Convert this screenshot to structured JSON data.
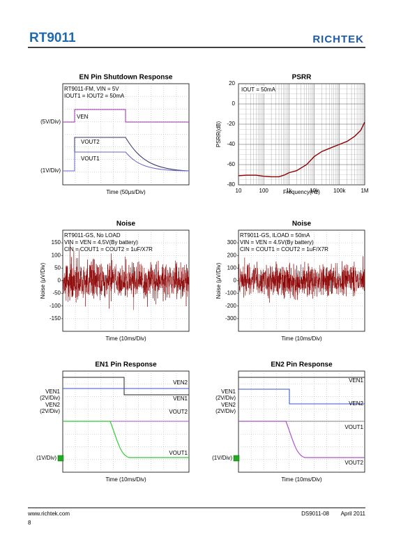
{
  "header": {
    "title": "RT9011",
    "logo": "RICHTEK"
  },
  "panels": [
    {
      "title": "EN Pin Shutdown Response",
      "notes": [
        "RT9011-FM, VIN = 5V",
        "IOUT1 = IOUT2 = 50mA"
      ],
      "left_labels": [
        "(5V/Div)",
        "(1V/Div)"
      ],
      "trace_labels": [
        "VEN",
        "VOUT2",
        "VOUT1"
      ],
      "xlabel": "Time (50μs/Div)"
    },
    {
      "type": "line",
      "title": "PSRR",
      "notes": [
        "IOUT = 50mA"
      ],
      "xlabel": "Frequency(Hz)",
      "ylabel": "PSRR(dB)",
      "xscale": "log",
      "xlim": [
        10,
        1000000
      ],
      "xticks": [
        10,
        100,
        {
          "value": 1000,
          "label": "1k"
        },
        {
          "value": 10000,
          "label": "10k"
        },
        {
          "value": 100000,
          "label": "100k"
        },
        {
          "value": 1000000,
          "label": "1M"
        }
      ],
      "ylim": [
        -80,
        20
      ],
      "yticks": [
        20,
        0,
        -20,
        -40,
        -60,
        -80
      ],
      "grid": true,
      "color": "#8b0000",
      "x": [
        10,
        20,
        50,
        100,
        200,
        400,
        700,
        1000,
        2000,
        5000,
        10000,
        20000,
        50000,
        100000,
        200000,
        400000,
        700000,
        1000000
      ],
      "values": [
        -71,
        -70.5,
        -70.5,
        -71.5,
        -72,
        -72,
        -70,
        -68,
        -66,
        -60,
        -52,
        -47,
        -43,
        -40,
        -37,
        -32,
        -26,
        -18
      ]
    },
    {
      "title": "Noise",
      "notes": [
        "RT9011-GS, No LOAD",
        "VIN = VEN = 4.5V(By battery)",
        "CIN = COUT1 = COUT2 = 1uF/X7R"
      ],
      "ylabel": "Noise (μV/Div)",
      "xlabel": "Time (10ms/Div)",
      "ylim": [
        -200,
        200
      ],
      "yticks": [
        150,
        100,
        50,
        0,
        -50,
        -100,
        -150
      ]
    },
    {
      "title": "Noise",
      "notes": [
        "RT9011-GS, ILOAD = 50mA",
        "VIN = VEN = 4.5V(By battery)",
        "CIN = COUT1 = COUT2 = 1uF/X7R"
      ],
      "ylabel": "Noise (μV/Div)",
      "xlabel": "Time (10ms/Div)",
      "ylim": [
        -400,
        400
      ],
      "yticks": [
        300,
        200,
        100,
        0,
        -100,
        -200,
        -300
      ]
    },
    {
      "title": "EN1 Pin Response",
      "left_labels": [
        "VEN1",
        "(2V/Div)",
        "VEN2",
        "(2V/Div)",
        "(1V/Div)"
      ],
      "trace_labels": [
        "VEN2",
        "VEN1",
        "VOUT2",
        "VOUT1"
      ],
      "xlabel": "Time (10ms/Div)"
    },
    {
      "title": "EN2 Pin Response",
      "left_labels": [
        "VEN1",
        "(2V/Div)",
        "VEN2",
        "(2V/Div)",
        "(1V/Div)"
      ],
      "trace_labels": [
        "VEN1",
        "VEN2",
        "VOUT1",
        "VOUT2"
      ],
      "xlabel": "Time (10ms/Div)"
    }
  ],
  "footer": {
    "url": "www.richtek.com",
    "page": "8",
    "doc": "DS9011-08",
    "date": "April 2011"
  }
}
